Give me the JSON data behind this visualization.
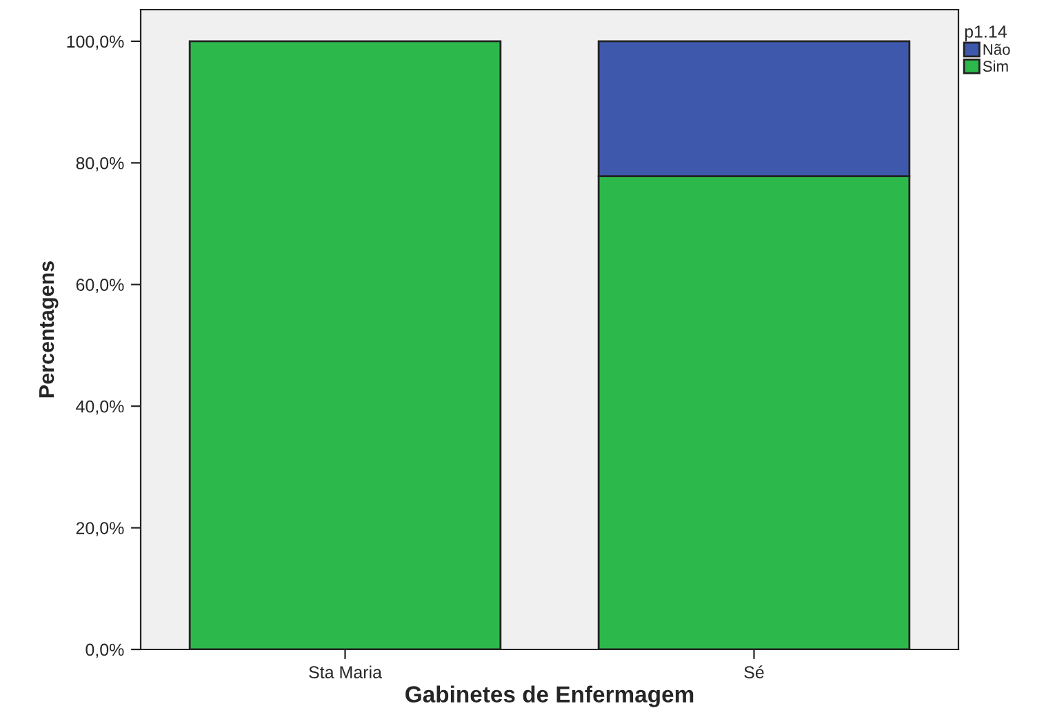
{
  "chart_data": {
    "type": "bar",
    "stacked": true,
    "xlabel": "Gabinetes de Enfermagem",
    "ylabel": "Percentagens",
    "legend_title": "p1.14",
    "legend": "top right",
    "categories": [
      "Sta Maria",
      "Sé"
    ],
    "series": [
      {
        "name": "Sim",
        "color": "#2db84b",
        "values": [
          100,
          77.8
        ]
      },
      {
        "name": "Não",
        "color": "#3e58ac",
        "values": [
          0,
          22.2
        ]
      }
    ],
    "ylim": [
      0,
      105.2
    ],
    "yticks": [
      {
        "value": 0,
        "label": "0,0%"
      },
      {
        "value": 20,
        "label": "20,0%"
      },
      {
        "value": 40,
        "label": "40,0%"
      },
      {
        "value": 60,
        "label": "60,0%"
      },
      {
        "value": 80,
        "label": "80,0%"
      },
      {
        "value": 100,
        "label": "100,0%"
      }
    ],
    "grid": false
  }
}
